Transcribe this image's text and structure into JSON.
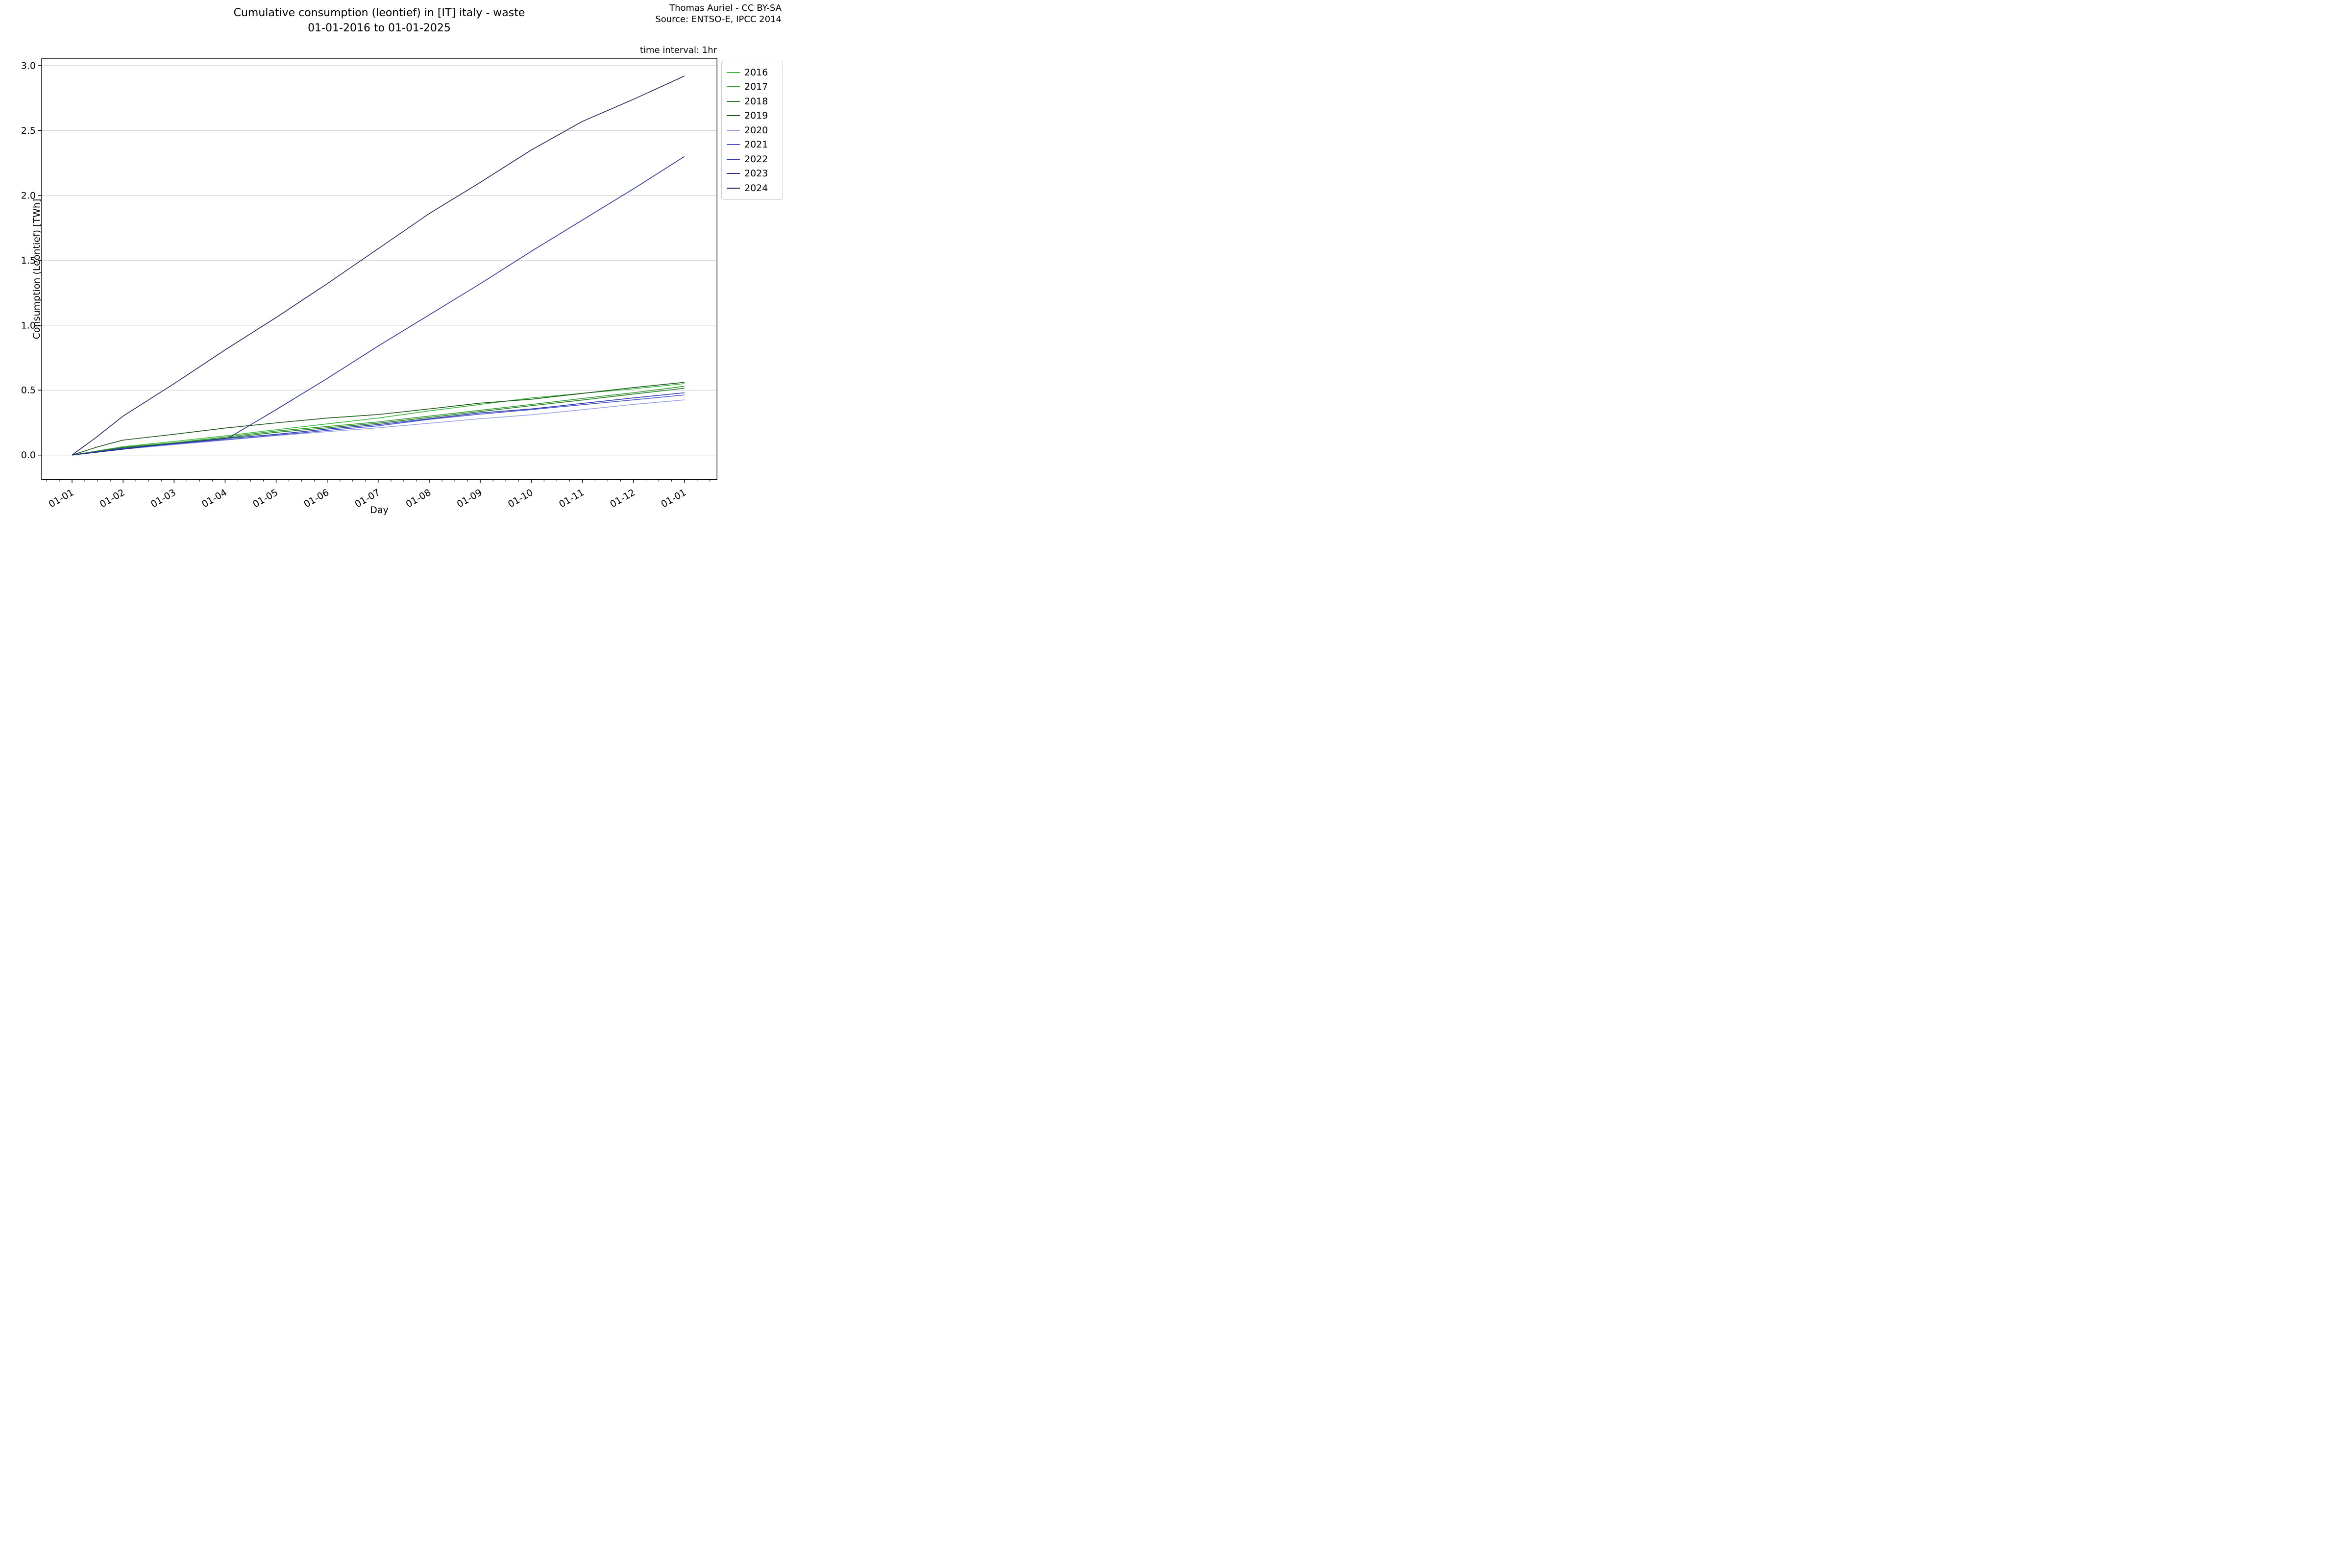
{
  "header": {
    "title_line1": "Cumulative consumption (leontief) in [IT] italy - waste",
    "title_line2": "01-01-2016 to 01-01-2025",
    "attribution_line1": "Thomas Auriel - CC BY-SA",
    "attribution_line2": "Source: ENTSO-E, IPCC 2014"
  },
  "plot": {
    "time_interval_label": "time interval: 1hr",
    "xlabel": "Day",
    "ylabel": "Consumption (Leontief) [TWh]"
  },
  "chart_data": {
    "type": "line",
    "title": "Cumulative consumption (leontief) in [IT] italy - waste 01-01-2016 to 01-01-2025",
    "xlabel": "Day",
    "ylabel": "Consumption (Leontief) [TWh]",
    "x_unit": "months elapsed since 01-01 of each year",
    "x_tick_labels": [
      "01-01",
      "01-02",
      "01-03",
      "01-04",
      "01-05",
      "01-06",
      "01-07",
      "01-08",
      "01-09",
      "01-10",
      "01-11",
      "01-12",
      "01-01"
    ],
    "x_tick_months": [
      0,
      1,
      2,
      3,
      4,
      5,
      6,
      7,
      8,
      9,
      10,
      11,
      12
    ],
    "y_ticks": [
      0.0,
      0.5,
      1.0,
      1.5,
      2.0,
      2.5,
      3.0
    ],
    "y_tick_labels": [
      "0.0",
      "0.5",
      "1.0",
      "1.5",
      "2.0",
      "2.5",
      "3.0"
    ],
    "ylim": [
      -0.19,
      3.06
    ],
    "xlim_months": [
      -0.6,
      12.64
    ],
    "grid": "horizontal-only",
    "grid_color": "#c9c9c9",
    "legend_position": "outside upper right",
    "series": [
      {
        "name": "2016",
        "color": "#3cbb3c",
        "points": [
          [
            0,
            0
          ],
          [
            1,
            0.065
          ],
          [
            2,
            0.105
          ],
          [
            3,
            0.148
          ],
          [
            4,
            0.195
          ],
          [
            5,
            0.24
          ],
          [
            6,
            0.285
          ],
          [
            7,
            0.34
          ],
          [
            8,
            0.39
          ],
          [
            9,
            0.44
          ],
          [
            10,
            0.476
          ],
          [
            11,
            0.51
          ],
          [
            12,
            0.55
          ]
        ]
      },
      {
        "name": "2017",
        "color": "#339f33",
        "points": [
          [
            0,
            0
          ],
          [
            1,
            0.06
          ],
          [
            2,
            0.095
          ],
          [
            3,
            0.139
          ],
          [
            4,
            0.185
          ],
          [
            5,
            0.22
          ],
          [
            6,
            0.255
          ],
          [
            7,
            0.3
          ],
          [
            8,
            0.345
          ],
          [
            9,
            0.39
          ],
          [
            10,
            0.436
          ],
          [
            11,
            0.48
          ],
          [
            12,
            0.53
          ]
        ]
      },
      {
        "name": "2018",
        "color": "#2a7e2a",
        "points": [
          [
            0,
            0
          ],
          [
            1,
            0.058
          ],
          [
            2,
            0.09
          ],
          [
            3,
            0.131
          ],
          [
            4,
            0.175
          ],
          [
            5,
            0.21
          ],
          [
            6,
            0.245
          ],
          [
            7,
            0.29
          ],
          [
            8,
            0.335
          ],
          [
            9,
            0.38
          ],
          [
            10,
            0.424
          ],
          [
            11,
            0.47
          ],
          [
            12,
            0.515
          ]
        ]
      },
      {
        "name": "2019",
        "color": "#1c551c",
        "points": [
          [
            0,
            0
          ],
          [
            0.5,
            0.063
          ],
          [
            1,
            0.115
          ],
          [
            2,
            0.16
          ],
          [
            3,
            0.208
          ],
          [
            4,
            0.248
          ],
          [
            5,
            0.285
          ],
          [
            6,
            0.312
          ],
          [
            7,
            0.355
          ],
          [
            8,
            0.4
          ],
          [
            9,
            0.43
          ],
          [
            10,
            0.475
          ],
          [
            11,
            0.52
          ],
          [
            12,
            0.56
          ]
        ]
      },
      {
        "name": "2020",
        "color": "#9aa3e8",
        "points": [
          [
            0,
            0
          ],
          [
            1,
            0.045
          ],
          [
            2,
            0.08
          ],
          [
            3,
            0.115
          ],
          [
            4,
            0.15
          ],
          [
            5,
            0.18
          ],
          [
            6,
            0.21
          ],
          [
            7,
            0.245
          ],
          [
            8,
            0.28
          ],
          [
            9,
            0.31
          ],
          [
            10,
            0.349
          ],
          [
            11,
            0.39
          ],
          [
            12,
            0.425
          ]
        ]
      },
      {
        "name": "2021",
        "color": "#4c57ce",
        "points": [
          [
            0,
            0
          ],
          [
            1,
            0.05
          ],
          [
            2,
            0.085
          ],
          [
            3,
            0.118
          ],
          [
            4,
            0.153
          ],
          [
            5,
            0.19
          ],
          [
            6,
            0.225
          ],
          [
            7,
            0.275
          ],
          [
            8,
            0.315
          ],
          [
            9,
            0.35
          ],
          [
            10,
            0.388
          ],
          [
            11,
            0.425
          ],
          [
            12,
            0.463
          ]
        ]
      },
      {
        "name": "2022",
        "color": "#3039af",
        "points": [
          [
            0,
            0
          ],
          [
            1,
            0.052
          ],
          [
            2,
            0.088
          ],
          [
            3,
            0.127
          ],
          [
            4,
            0.16
          ],
          [
            5,
            0.2
          ],
          [
            6,
            0.235
          ],
          [
            7,
            0.28
          ],
          [
            8,
            0.325
          ],
          [
            9,
            0.355
          ],
          [
            10,
            0.398
          ],
          [
            11,
            0.44
          ],
          [
            12,
            0.48
          ]
        ]
      },
      {
        "name": "2023",
        "color": "#2a3291",
        "points": [
          [
            0,
            0
          ],
          [
            1,
            0.045
          ],
          [
            2,
            0.09
          ],
          [
            3,
            0.125
          ],
          [
            3.07,
            0.133
          ],
          [
            4,
            0.35
          ],
          [
            5,
            0.59
          ],
          [
            6,
            0.84
          ],
          [
            7,
            1.08
          ],
          [
            8,
            1.32
          ],
          [
            9,
            1.57
          ],
          [
            10,
            1.81
          ],
          [
            11,
            2.05
          ],
          [
            12,
            2.3
          ]
        ]
      },
      {
        "name": "2024",
        "color": "#1c2356",
        "points": [
          [
            0,
            0
          ],
          [
            0.47,
            0.135
          ],
          [
            1,
            0.3
          ],
          [
            2,
            0.55
          ],
          [
            3,
            0.81
          ],
          [
            4,
            1.06
          ],
          [
            5,
            1.32
          ],
          [
            6,
            1.59
          ],
          [
            7,
            1.86
          ],
          [
            8,
            2.1
          ],
          [
            9,
            2.35
          ],
          [
            10,
            2.57
          ],
          [
            11,
            2.74
          ],
          [
            12,
            2.92
          ]
        ]
      }
    ]
  }
}
